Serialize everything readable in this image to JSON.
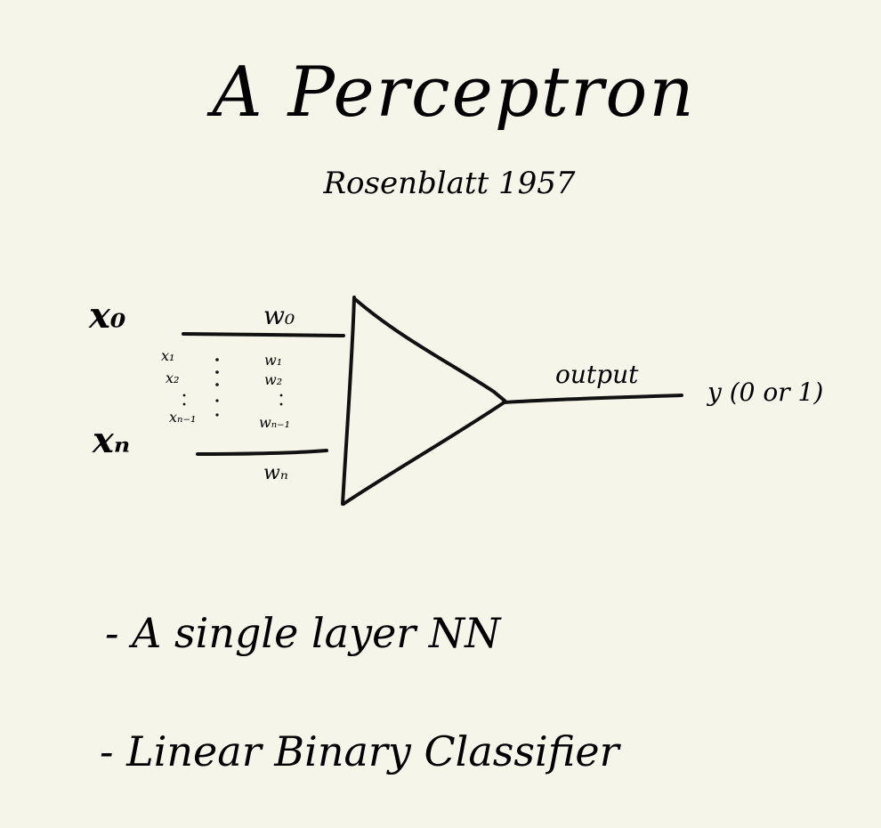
{
  "title": "A Perceptron",
  "subtitle": "Rosenblatt 1957",
  "inputs": {
    "x0": "x₀",
    "x1": "x₁",
    "x2": "x₂",
    "xn_minus_1": "xₙ₋₁",
    "xn": "xₙ"
  },
  "weights": {
    "w0": "w₀",
    "w1": "w₁",
    "w2": "w₂",
    "wn_minus_1": "wₙ₋₁",
    "wn": "wₙ"
  },
  "output": {
    "label": "output",
    "value": "y (0 or 1)"
  },
  "bullets": [
    "- A single layer NN",
    "- Linear Binary Classifier"
  ],
  "colors": {
    "background": "#f6f5ea",
    "ink": "#111111"
  }
}
